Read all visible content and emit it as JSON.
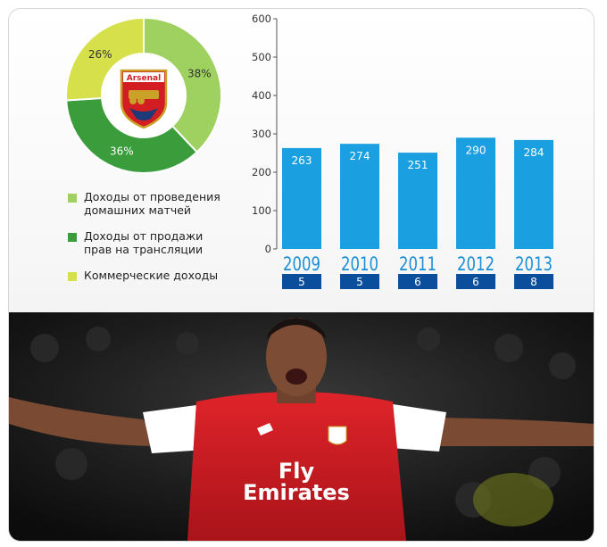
{
  "chart_data": [
    {
      "type": "pie",
      "slices": [
        {
          "label": "Доходы от проведения домашних матчей",
          "value": 38,
          "display": "38%",
          "color": "#9ed160"
        },
        {
          "label": "Доходы от продажи прав на трансляции",
          "value": 36,
          "display": "36%",
          "color": "#3a9c3a"
        },
        {
          "label": "Коммерческие доходы",
          "value": 26,
          "display": "26%",
          "color": "#d6e04a"
        }
      ],
      "center_logo": "Arsenal"
    },
    {
      "type": "bar",
      "categories": [
        "2009",
        "2010",
        "2011",
        "2012",
        "2013"
      ],
      "values": [
        263,
        274,
        251,
        290,
        284
      ],
      "badges": [
        "5",
        "5",
        "6",
        "6",
        "8"
      ],
      "ylim": [
        0,
        600
      ],
      "yticks": [
        "0",
        "100",
        "200",
        "300",
        "400",
        "500",
        "600"
      ],
      "bar_color": "#1a9fe0",
      "badge_color": "#0b4f9c",
      "year_color": "#1a8fd6"
    }
  ],
  "legend": [
    {
      "lines": [
        "Доходы от проведения",
        "домашних матчей"
      ],
      "color": "#9ed160"
    },
    {
      "lines": [
        "Доходы от продажи",
        "прав на трансляции"
      ],
      "color": "#3a9c3a"
    },
    {
      "lines": [
        "Коммерческие доходы"
      ],
      "color": "#d6e04a"
    }
  ],
  "photo": {
    "sponsor_line1": "Fly",
    "sponsor_line2": "Emirates",
    "crest_text": "Arsenal"
  }
}
